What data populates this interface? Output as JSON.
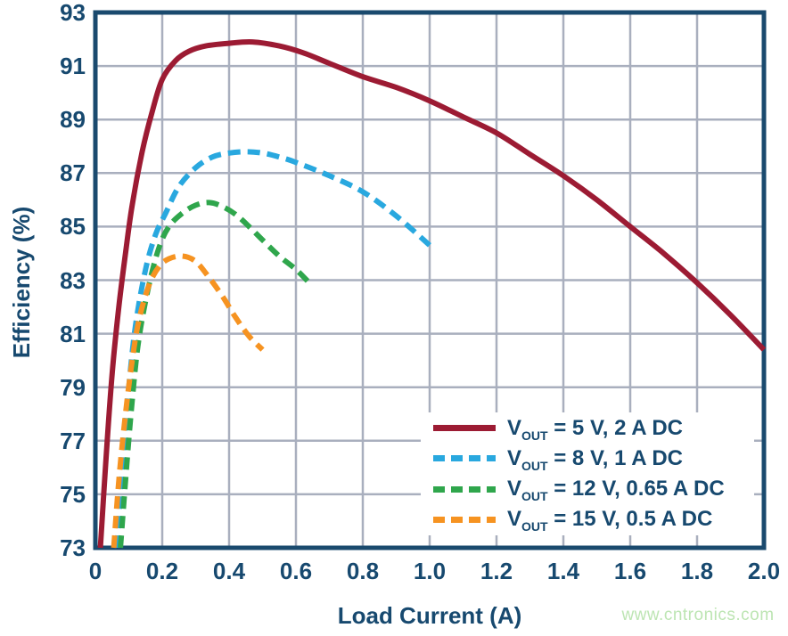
{
  "page": {
    "watermark": "www.cntronics.com"
  },
  "style": {
    "axis_text_color": "#17496F",
    "border_color": "#1A4A6E",
    "grid_color": "#A9AFBE",
    "watermark_color": "#BDE5B3",
    "background": "#FFFFFF"
  },
  "chart_data": {
    "type": "line",
    "title": "",
    "xlabel": "Load Current (A)",
    "ylabel": "Efficiency (%)",
    "xlim": [
      0,
      2.0
    ],
    "ylim": [
      73,
      93
    ],
    "x_ticks": [
      "0",
      "0.2",
      "0.4",
      "0.6",
      "0.8",
      "1.0",
      "1.2",
      "1.4",
      "1.6",
      "1.8",
      "2.0"
    ],
    "x_tick_values": [
      0,
      0.2,
      0.4,
      0.6,
      0.8,
      1.0,
      1.2,
      1.4,
      1.6,
      1.8,
      2.0
    ],
    "y_ticks": [
      "93",
      "91",
      "89",
      "87",
      "85",
      "83",
      "81",
      "79",
      "77",
      "75",
      "73"
    ],
    "y_tick_values": [
      93,
      91,
      89,
      87,
      85,
      83,
      81,
      79,
      77,
      75,
      73
    ],
    "grid": true,
    "legend_position": "inside-bottom-right",
    "series": [
      {
        "name": "VOUT = 5 V, 2 A DC",
        "legend_var": "V",
        "legend_sub": "OUT",
        "legend_rest": " = 5 V, 2 A DC",
        "color": "#9C1B33",
        "line_style": "solid",
        "points": [
          [
            0.015,
            73.0
          ],
          [
            0.03,
            76.0
          ],
          [
            0.05,
            79.5
          ],
          [
            0.07,
            82.0
          ],
          [
            0.09,
            84.0
          ],
          [
            0.11,
            85.8
          ],
          [
            0.14,
            87.8
          ],
          [
            0.17,
            89.3
          ],
          [
            0.2,
            90.5
          ],
          [
            0.24,
            91.2
          ],
          [
            0.28,
            91.55
          ],
          [
            0.33,
            91.75
          ],
          [
            0.4,
            91.85
          ],
          [
            0.47,
            91.9
          ],
          [
            0.55,
            91.75
          ],
          [
            0.62,
            91.5
          ],
          [
            0.7,
            91.1
          ],
          [
            0.8,
            90.6
          ],
          [
            0.9,
            90.2
          ],
          [
            1.0,
            89.7
          ],
          [
            1.1,
            89.1
          ],
          [
            1.2,
            88.5
          ],
          [
            1.3,
            87.7
          ],
          [
            1.4,
            86.9
          ],
          [
            1.5,
            86.0
          ],
          [
            1.6,
            85.0
          ],
          [
            1.7,
            84.0
          ],
          [
            1.8,
            82.9
          ],
          [
            1.9,
            81.7
          ],
          [
            2.0,
            80.4
          ]
        ]
      },
      {
        "name": "VOUT = 8 V, 1 A DC",
        "legend_var": "V",
        "legend_sub": "OUT",
        "legend_rest": " = 8 V, 1 A DC",
        "color": "#29A8DF",
        "line_style": "dashed",
        "points": [
          [
            0.065,
            73.0
          ],
          [
            0.08,
            76.0
          ],
          [
            0.1,
            79.0
          ],
          [
            0.12,
            81.3
          ],
          [
            0.15,
            83.4
          ],
          [
            0.18,
            84.7
          ],
          [
            0.21,
            85.5
          ],
          [
            0.25,
            86.5
          ],
          [
            0.3,
            87.2
          ],
          [
            0.35,
            87.6
          ],
          [
            0.4,
            87.75
          ],
          [
            0.45,
            87.8
          ],
          [
            0.5,
            87.75
          ],
          [
            0.55,
            87.6
          ],
          [
            0.6,
            87.4
          ],
          [
            0.7,
            86.9
          ],
          [
            0.8,
            86.3
          ],
          [
            0.9,
            85.4
          ],
          [
            1.0,
            84.3
          ]
        ]
      },
      {
        "name": "VOUT = 12 V, 0.65 A DC",
        "legend_var": "V",
        "legend_sub": "OUT",
        "legend_rest": " = 12 V, 0.65 A DC",
        "color": "#2FA64C",
        "line_style": "dashed",
        "points": [
          [
            0.075,
            73.0
          ],
          [
            0.09,
            75.5
          ],
          [
            0.11,
            78.5
          ],
          [
            0.13,
            80.8
          ],
          [
            0.16,
            82.8
          ],
          [
            0.19,
            84.2
          ],
          [
            0.22,
            85.0
          ],
          [
            0.26,
            85.5
          ],
          [
            0.3,
            85.8
          ],
          [
            0.34,
            85.9
          ],
          [
            0.38,
            85.75
          ],
          [
            0.42,
            85.45
          ],
          [
            0.46,
            85.0
          ],
          [
            0.5,
            84.5
          ],
          [
            0.55,
            83.9
          ],
          [
            0.6,
            83.4
          ],
          [
            0.64,
            82.9
          ]
        ]
      },
      {
        "name": "VOUT = 15 V, 0.5 A DC",
        "legend_var": "V",
        "legend_sub": "OUT",
        "legend_rest": " = 15 V, 0.5 A DC",
        "color": "#F69321",
        "line_style": "dashed",
        "points": [
          [
            0.055,
            73.0
          ],
          [
            0.07,
            75.5
          ],
          [
            0.09,
            78.0
          ],
          [
            0.11,
            80.0
          ],
          [
            0.13,
            81.5
          ],
          [
            0.16,
            82.8
          ],
          [
            0.19,
            83.5
          ],
          [
            0.22,
            83.8
          ],
          [
            0.26,
            83.9
          ],
          [
            0.3,
            83.7
          ],
          [
            0.34,
            83.1
          ],
          [
            0.38,
            82.4
          ],
          [
            0.42,
            81.6
          ],
          [
            0.46,
            80.9
          ],
          [
            0.5,
            80.4
          ]
        ]
      }
    ]
  }
}
